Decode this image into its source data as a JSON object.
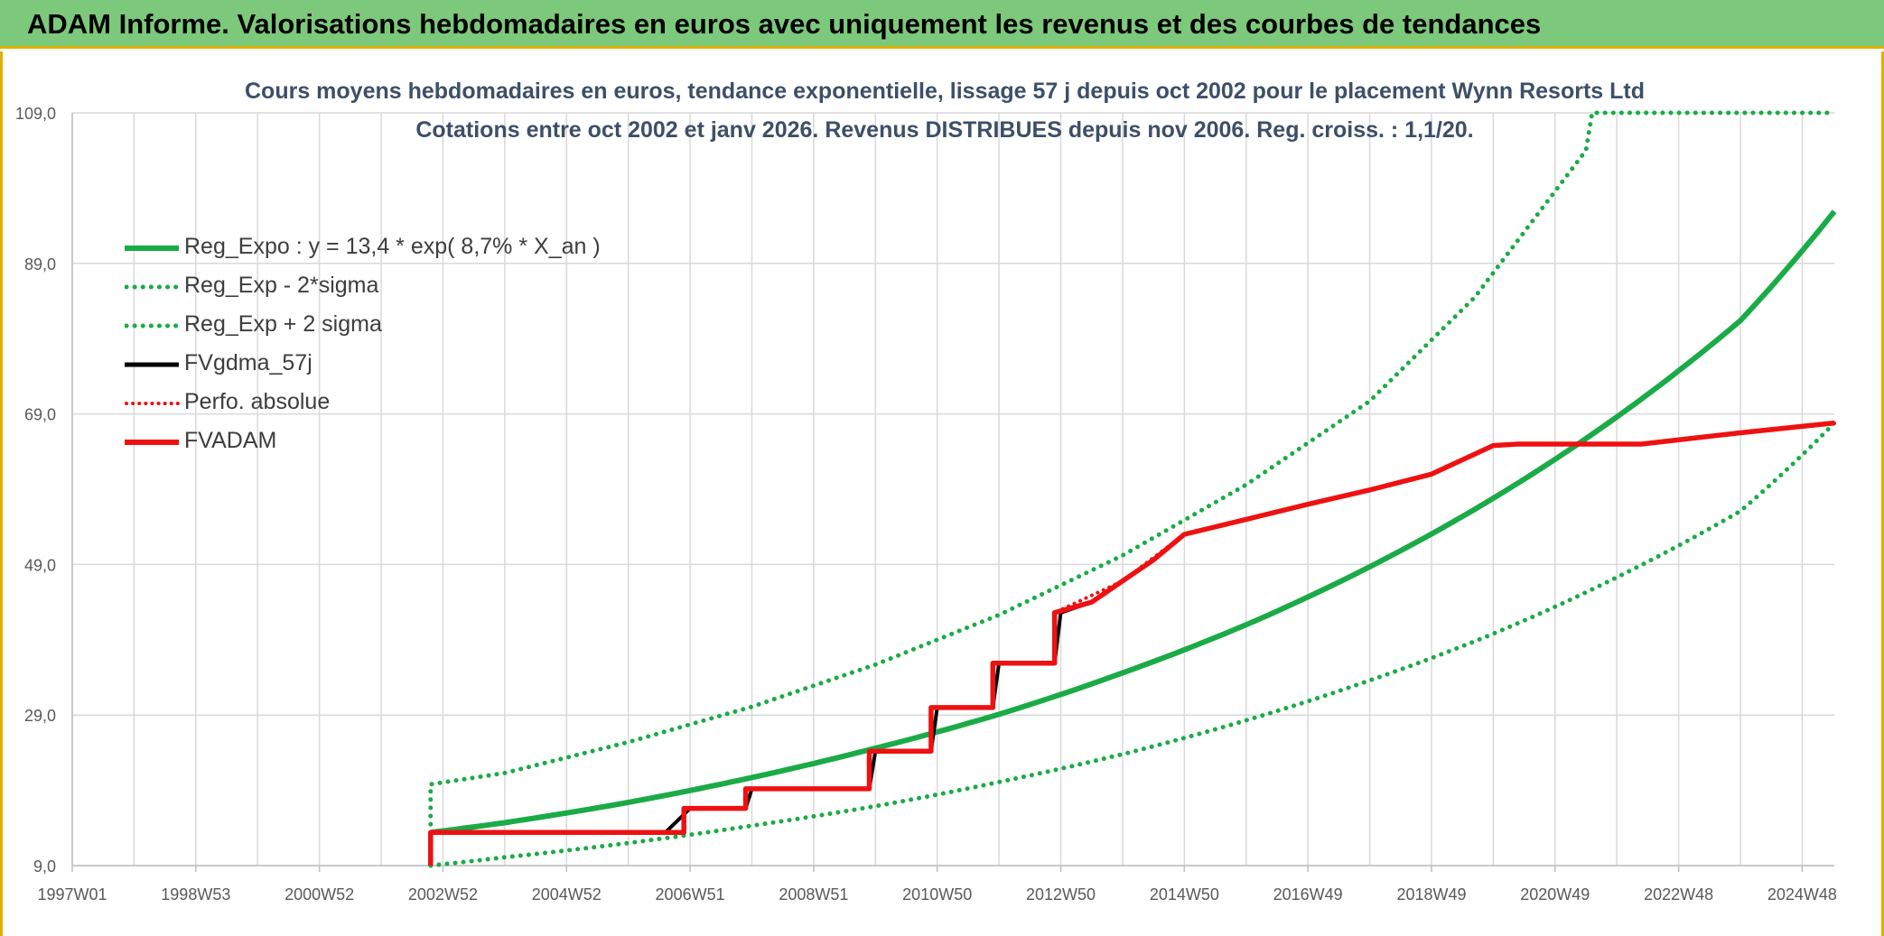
{
  "banner": {
    "title": "ADAM Informe. Valorisations hebdomadaires en euros avec uniquement les revenus et des courbes de tendances"
  },
  "colors": {
    "banner_bg": "#7dc97b",
    "frame_accent": "#e0b000",
    "trend_green": "#1aab47",
    "band_green": "#1aab47",
    "price_black": "#000000",
    "fvadam_red": "#ee1111",
    "perf_red": "#ee1111"
  },
  "chart_data": {
    "type": "line",
    "title": "Cours moyens hebdomadaires en euros, tendance exponentielle, lissage 57 j depuis oct 2002 pour le placement Wynn Resorts Ltd",
    "subtitle": "Cotations entre oct 2002 et janv 2026. Revenus DISTRIBUES depuis nov 2006. Reg. croiss. : 1,1/20.",
    "xlabel": "",
    "ylabel": "",
    "ylim": [
      9.0,
      109.0
    ],
    "xlim": [
      1997.0,
      2025.52
    ],
    "y_ticks": [
      "9,0",
      "29,0",
      "49,0",
      "69,0",
      "89,0",
      "109,0"
    ],
    "x_ticks": [
      {
        "label": "1997W01",
        "x": 1997.0
      },
      {
        "label": "1998W53",
        "x": 1999.0
      },
      {
        "label": "2000W52",
        "x": 2001.0
      },
      {
        "label": "2002W52",
        "x": 2003.0
      },
      {
        "label": "2004W52",
        "x": 2005.0
      },
      {
        "label": "2006W51",
        "x": 2007.0
      },
      {
        "label": "2008W51",
        "x": 2009.0
      },
      {
        "label": "2010W50",
        "x": 2011.0
      },
      {
        "label": "2012W50",
        "x": 2013.0
      },
      {
        "label": "2014W50",
        "x": 2015.0
      },
      {
        "label": "2016W49",
        "x": 2017.0
      },
      {
        "label": "2018W49",
        "x": 2019.0
      },
      {
        "label": "2020W49",
        "x": 2021.0
      },
      {
        "label": "2022W48",
        "x": 2023.0
      },
      {
        "label": "2024W48",
        "x": 2025.0
      }
    ],
    "grid": true,
    "legend_position": "top-left",
    "series": [
      {
        "name": "Reg_Expo : y = 13,4 * exp( 8,7% *  X_an )",
        "color": "#1aab47",
        "style": "solid",
        "x": [
          2002.8,
          2004.0,
          2006.0,
          2008.0,
          2010.0,
          2012.0,
          2014.0,
          2016.0,
          2018.0,
          2020.0,
          2022.0,
          2024.0,
          2025.52
        ],
        "y": [
          13.4,
          14.7,
          17.4,
          20.7,
          24.6,
          29.1,
          34.6,
          41.0,
          48.7,
          57.8,
          68.6,
          81.4,
          95.9
        ]
      },
      {
        "name": "Reg_Exp - 2*sigma",
        "color": "#1aab47",
        "style": "dotted",
        "x": [
          2002.8,
          2004.0,
          2006.0,
          2008.0,
          2010.0,
          2012.0,
          2014.0,
          2016.0,
          2018.0,
          2020.0,
          2022.0,
          2024.0,
          2025.52
        ],
        "y": [
          9.0,
          10.1,
          12.0,
          14.3,
          16.9,
          20.1,
          23.8,
          28.3,
          33.6,
          39.8,
          47.3,
          56.1,
          67.8
        ]
      },
      {
        "name": "Reg_Exp + 2 sigma",
        "color": "#1aab47",
        "style": "dotted",
        "x": [
          2002.8,
          2002.8,
          2004.0,
          2006.0,
          2008.0,
          2010.0,
          2012.0,
          2014.0,
          2016.0,
          2018.0,
          2019.7,
          2021.5,
          2021.6,
          2025.52
        ],
        "y": [
          13.4,
          19.8,
          21.3,
          25.4,
          30.1,
          35.7,
          42.3,
          50.2,
          59.6,
          70.7,
          84.5,
          104.0,
          109.0,
          109.0
        ]
      },
      {
        "name": "FVgdma_57j",
        "color": "#000000",
        "style": "solid",
        "x": [
          2002.8,
          2006.6,
          2007.0,
          2007.9,
          2008.0,
          2009.9,
          2010.0,
          2010.9,
          2011.0,
          2011.9,
          2012.0,
          2012.9,
          2013.0,
          2013.5,
          2014.0,
          2014.5,
          2015.0,
          2016.0,
          2017.0,
          2018.0,
          2019.0,
          2020.0,
          2020.4,
          2022.4,
          2024.0,
          2025.52
        ],
        "y": [
          13.4,
          13.4,
          16.6,
          16.6,
          19.2,
          19.2,
          24.2,
          24.2,
          30.0,
          30.0,
          35.9,
          35.9,
          42.6,
          44.0,
          46.8,
          49.6,
          53.0,
          55.0,
          57.0,
          58.9,
          61.0,
          64.8,
          65.0,
          65.0,
          66.5,
          67.8
        ]
      },
      {
        "name": "Perfo. absolue",
        "color": "#ee1111",
        "style": "dotted",
        "x": [
          2002.8,
          2006.9,
          2006.9,
          2007.9,
          2007.9,
          2009.9,
          2009.9,
          2010.9,
          2010.9,
          2011.9,
          2011.9,
          2012.9,
          2012.9,
          2014.0,
          2015.0,
          2016.0,
          2017.0,
          2018.0,
          2019.0,
          2020.0,
          2020.4,
          2022.4,
          2024.0,
          2025.52
        ],
        "y": [
          13.4,
          13.4,
          16.6,
          16.6,
          19.2,
          19.2,
          24.2,
          24.2,
          30.0,
          30.0,
          35.9,
          35.9,
          42.6,
          46.8,
          53.0,
          55.0,
          57.0,
          58.9,
          61.0,
          64.8,
          65.0,
          65.0,
          66.5,
          67.8
        ]
      },
      {
        "name": "FVADAM",
        "color": "#ee1111",
        "style": "solid",
        "x": [
          2002.8,
          2002.8,
          2006.9,
          2006.9,
          2007.9,
          2007.9,
          2009.9,
          2009.9,
          2010.9,
          2010.9,
          2011.9,
          2011.9,
          2012.9,
          2012.9,
          2013.5,
          2014.0,
          2014.5,
          2015.0,
          2016.0,
          2017.0,
          2018.0,
          2019.0,
          2020.0,
          2020.4,
          2022.4,
          2024.0,
          2025.52
        ],
        "y": [
          9.0,
          13.4,
          13.4,
          16.6,
          16.6,
          19.2,
          19.2,
          24.2,
          24.2,
          30.0,
          30.0,
          35.9,
          35.9,
          42.6,
          44.0,
          46.8,
          49.6,
          53.0,
          55.0,
          57.0,
          58.9,
          61.0,
          64.8,
          65.0,
          65.0,
          66.5,
          67.8
        ]
      }
    ]
  }
}
